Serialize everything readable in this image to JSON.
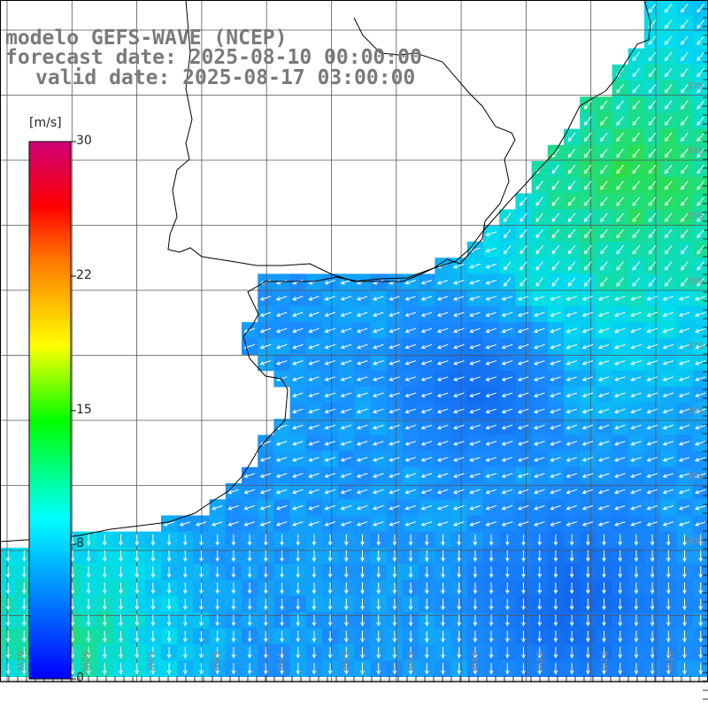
{
  "title": {
    "line1": "modelo GEFS-WAVE (NCEP)",
    "line2": "forecast date: 2025-08-10 00:00:00",
    "line3": "valid date: 2025-08-17 03:00:00"
  },
  "colorbar": {
    "unit": "[m/s]",
    "ticks": [
      "30",
      "22",
      "15",
      "8",
      "0"
    ],
    "stops": [
      "#0000ff",
      "#00aaff",
      "#00ffff",
      "#00ff00",
      "#ffff00",
      "#ff7700",
      "#ff0000",
      "#cc0077"
    ]
  },
  "map": {
    "lon_labels": [
      "61W",
      "60W",
      "59W",
      "58W",
      "57W",
      "56W",
      "55W",
      "54W",
      "53W",
      "52W",
      "51W"
    ],
    "lat_labels": [
      "33S",
      "34S",
      "35S",
      "36S",
      "37S",
      "38S",
      "39S",
      "40S"
    ],
    "colors": {
      "land": "#ffffff",
      "coast": "#000000",
      "grid": "#555555",
      "arrows": "#ffffff",
      "high_wind": "#33dd33",
      "mid_wind": "#00ddee",
      "low_wind": "#1a8cff"
    }
  }
}
